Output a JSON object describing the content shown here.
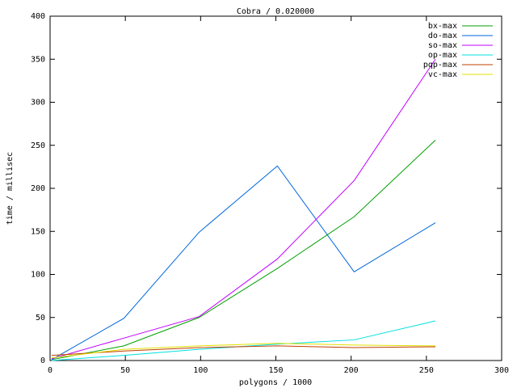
{
  "chart_data": {
    "type": "line",
    "title": "Cobra / 0.020000",
    "x_label": "polygons / 1000",
    "y_label": "time / millisec",
    "x": [
      1,
      49,
      99,
      151,
      202,
      256
    ],
    "series": [
      {
        "name": "bx-max",
        "color": "#00a000",
        "values": [
          1,
          17,
          50,
          107,
          167,
          256
        ]
      },
      {
        "name": "do-max",
        "color": "#0066dd",
        "values": [
          1,
          49,
          149,
          226,
          103,
          160
        ]
      },
      {
        "name": "so-max",
        "color": "#c000ff",
        "values": [
          2,
          26,
          51,
          118,
          209,
          350
        ]
      },
      {
        "name": "op-max",
        "color": "#00e0e0",
        "values": [
          0,
          6,
          13,
          19,
          24,
          46
        ]
      },
      {
        "name": "pqp-max",
        "color": "#c04000",
        "values": [
          6,
          11,
          15,
          17,
          15,
          16
        ]
      },
      {
        "name": "vc-max",
        "color": "#e0e000",
        "values": [
          3,
          13,
          17,
          20,
          18,
          17
        ]
      }
    ],
    "xlim": [
      0,
      300
    ],
    "xticks": [
      0,
      50,
      100,
      150,
      200,
      250,
      300
    ],
    "ylim": [
      0,
      400
    ],
    "yticks": [
      0,
      50,
      100,
      150,
      200,
      250,
      300,
      350,
      400
    ],
    "legend": "top-right"
  }
}
